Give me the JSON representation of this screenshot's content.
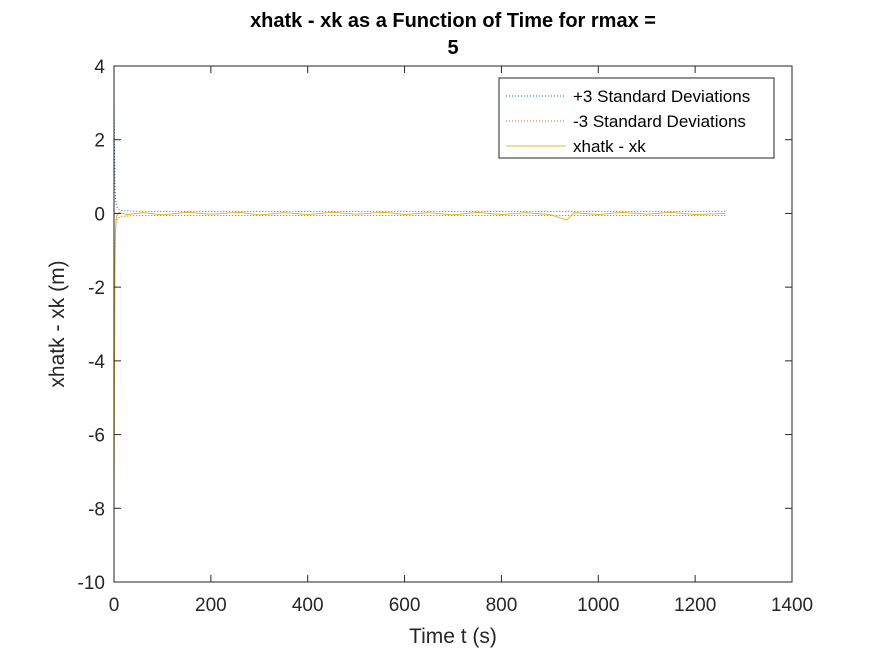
{
  "chart_data": {
    "type": "line",
    "title_line1": "xhatk - xk as a Function of Time for rmax =",
    "title_line2": "5",
    "xlabel": "Time t (s)",
    "ylabel": "xhatk - xk (m)",
    "xlim": [
      0,
      1400
    ],
    "ylim": [
      -10,
      4
    ],
    "xticks": [
      0,
      200,
      400,
      600,
      800,
      1000,
      1200,
      1400
    ],
    "yticks": [
      4,
      2,
      0,
      -2,
      -4,
      -6,
      -8,
      -10
    ],
    "xtick_labels": [
      "0",
      "200",
      "400",
      "600",
      "800",
      "1000",
      "1200",
      "1400"
    ],
    "ytick_labels": [
      "4",
      "2",
      "0",
      "-2",
      "-4",
      "-6",
      "-8",
      "-10"
    ],
    "legend_position": "top-right",
    "series": [
      {
        "name": "+3 Standard Deviations",
        "color": "#0072BD",
        "style": "dotted",
        "points": [
          [
            0,
            3.1
          ],
          [
            1,
            2.0
          ],
          [
            2,
            0.9
          ],
          [
            3,
            0.4
          ],
          [
            5,
            0.2
          ],
          [
            8,
            0.12
          ],
          [
            15,
            0.08
          ],
          [
            40,
            0.06
          ],
          [
            100,
            0.055
          ],
          [
            400,
            0.055
          ],
          [
            800,
            0.055
          ],
          [
            1262,
            0.055
          ]
        ]
      },
      {
        "name": "-3 Standard Deviations",
        "color": "#D95319",
        "style": "dotted",
        "points": [
          [
            0,
            -3.1
          ],
          [
            1,
            -2.0
          ],
          [
            2,
            -0.9
          ],
          [
            3,
            -0.4
          ],
          [
            5,
            -0.2
          ],
          [
            8,
            -0.12
          ],
          [
            15,
            -0.08
          ],
          [
            40,
            -0.06
          ],
          [
            100,
            -0.055
          ],
          [
            400,
            -0.055
          ],
          [
            800,
            -0.055
          ],
          [
            1262,
            -0.055
          ]
        ]
      },
      {
        "name": "xhatk - xk",
        "color": "#EDB120",
        "style": "solid",
        "points": [
          [
            0,
            -8.0
          ],
          [
            1,
            -4.5
          ],
          [
            2,
            -1.6
          ],
          [
            3,
            -0.6
          ],
          [
            4,
            -0.2
          ],
          [
            6,
            -0.05
          ],
          [
            10,
            0.02
          ],
          [
            30,
            -0.03
          ],
          [
            60,
            0.02
          ],
          [
            100,
            -0.04
          ],
          [
            150,
            0.03
          ],
          [
            200,
            -0.02
          ],
          [
            260,
            0.03
          ],
          [
            300,
            -0.04
          ],
          [
            350,
            0.02
          ],
          [
            400,
            -0.03
          ],
          [
            450,
            0.03
          ],
          [
            500,
            -0.02
          ],
          [
            560,
            0.03
          ],
          [
            600,
            -0.03
          ],
          [
            650,
            0.02
          ],
          [
            700,
            -0.04
          ],
          [
            750,
            0.03
          ],
          [
            800,
            -0.03
          ],
          [
            850,
            0.02
          ],
          [
            900,
            -0.03
          ],
          [
            935,
            -0.18
          ],
          [
            950,
            0.02
          ],
          [
            1000,
            -0.03
          ],
          [
            1050,
            0.03
          ],
          [
            1100,
            -0.02
          ],
          [
            1150,
            0.03
          ],
          [
            1200,
            -0.03
          ],
          [
            1262,
            0.0
          ]
        ]
      }
    ]
  }
}
